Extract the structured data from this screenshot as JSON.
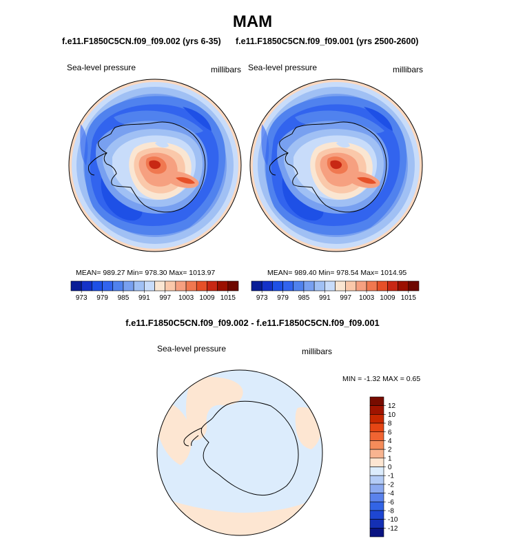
{
  "page": {
    "title": "MAM"
  },
  "panels": [
    {
      "subtitle": "f.e11.F1850C5CN.f09_f09.002 (yrs 6-35)",
      "left_label": "Sea-level pressure",
      "right_label": "millibars",
      "stats": "MEAN= 989.27  Min= 978.30  Max= 1013.97"
    },
    {
      "subtitle": "f.e11.F1850C5CN.f09_f09.001 (yrs 2500-2600)",
      "left_label": "Sea-level pressure",
      "right_label": "millibars",
      "stats": "MEAN= 989.40  Min= 978.54  Max= 1014.95"
    }
  ],
  "diff": {
    "title": "f.e11.F1850C5CN.f09_f09.002 - f.e11.F1850C5CN.f09_f09.001",
    "left_label": "Sea-level pressure",
    "right_label": "millibars",
    "minmax": "MIN =  -1.32 MAX =   0.65"
  },
  "chart_data": [
    {
      "type": "contour-map",
      "projection": "south-polar-stereographic",
      "title": "f.e11.F1850C5CN.f09_f09.002 (yrs 6-35)",
      "variable": "Sea-level pressure",
      "units": "millibars",
      "mean": 989.27,
      "min": 978.3,
      "max": 1013.97,
      "levels": [
        973,
        976,
        979,
        982,
        985,
        988,
        991,
        994,
        997,
        1000,
        1003,
        1006,
        1009,
        1012,
        1015
      ],
      "tick_labels": [
        "973",
        "979",
        "985",
        "991",
        "997",
        "1003",
        "1009",
        "1015"
      ],
      "colors": [
        "#0a1e96",
        "#1432c8",
        "#1e50e6",
        "#3264ee",
        "#5082ee",
        "#78a0f0",
        "#a0c0f4",
        "#c8dcfa",
        "#fae6d2",
        "#fac8aa",
        "#f6a080",
        "#f07850",
        "#e65028",
        "#c82814",
        "#9b1000",
        "#6e0800"
      ]
    },
    {
      "type": "contour-map",
      "projection": "south-polar-stereographic",
      "title": "f.e11.F1850C5CN.f09_f09.001 (yrs 2500-2600)",
      "variable": "Sea-level pressure",
      "units": "millibars",
      "mean": 989.4,
      "min": 978.54,
      "max": 1014.95,
      "levels": [
        973,
        976,
        979,
        982,
        985,
        988,
        991,
        994,
        997,
        1000,
        1003,
        1006,
        1009,
        1012,
        1015
      ],
      "tick_labels": [
        "973",
        "979",
        "985",
        "991",
        "997",
        "1003",
        "1009",
        "1015"
      ],
      "colors": [
        "#0a1e96",
        "#1432c8",
        "#1e50e6",
        "#3264ee",
        "#5082ee",
        "#78a0f0",
        "#a0c0f4",
        "#c8dcfa",
        "#fae6d2",
        "#fac8aa",
        "#f6a080",
        "#f07850",
        "#e65028",
        "#c82814",
        "#9b1000",
        "#6e0800"
      ]
    },
    {
      "type": "contour-map",
      "projection": "south-polar-stereographic",
      "title": "f.e11.F1850C5CN.f09_f09.002 - f.e11.F1850C5CN.f09_f09.001",
      "variable": "Sea-level pressure",
      "units": "millibars",
      "min": -1.32,
      "max": 0.65,
      "tick_labels": [
        "12",
        "10",
        "8",
        "6",
        "4",
        "2",
        "1",
        "0",
        "-1",
        "-2",
        "-4",
        "-6",
        "-8",
        "-10",
        "-12"
      ],
      "colors": [
        "#780c00",
        "#a01400",
        "#c82800",
        "#e64614",
        "#f06432",
        "#f58c5a",
        "#f8b490",
        "#fde6d2",
        "#dcecfc",
        "#b4ccf6",
        "#8caaf0",
        "#5a82ec",
        "#3264e6",
        "#1e46d2",
        "#1430b4",
        "#0a1482"
      ]
    }
  ]
}
